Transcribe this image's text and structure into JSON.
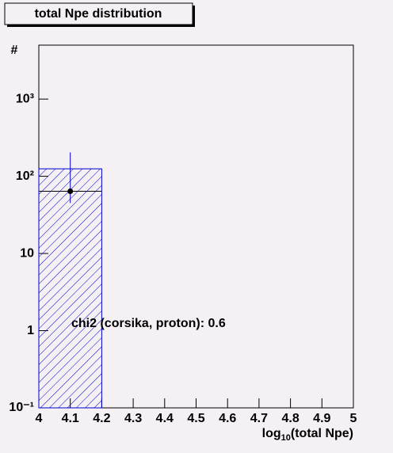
{
  "chart_data": {
    "type": "histogram",
    "title": "total Npe distribution",
    "ylabel": "#",
    "xlabel": [
      "log",
      "10",
      "(total Npe)"
    ],
    "annotation": "chi2 (corsika, proton): 0.6",
    "bins": [
      4.0,
      4.2
    ],
    "counts": [
      125
    ],
    "color": "#0000cc",
    "points": {
      "x": [
        4.1
      ],
      "y": [
        64
      ],
      "xerr": [
        0.1
      ],
      "yerr_low": [
        19
      ],
      "yerr_high": [
        140
      ],
      "color": "#000000"
    },
    "xlim": [
      4,
      5
    ],
    "xticks": [
      4,
      4.1,
      4.2,
      4.3,
      4.4,
      4.5,
      4.6,
      4.7,
      4.8,
      4.9,
      5
    ],
    "ylim": [
      0.1,
      5000
    ],
    "log_y": true,
    "yticks": [
      {
        "value": 0.1,
        "label": "10⁻¹"
      },
      1,
      10,
      {
        "value": 100,
        "label": "10²"
      },
      {
        "value": 1000,
        "label": "10³"
      }
    ]
  }
}
